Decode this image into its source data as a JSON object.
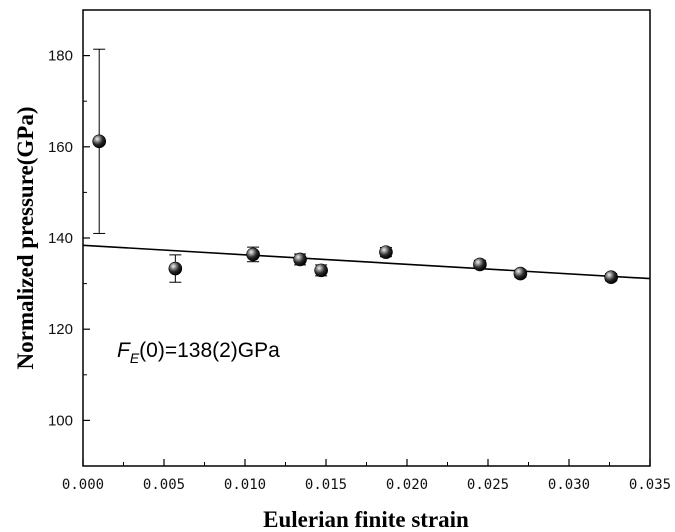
{
  "chart_data": {
    "type": "scatter",
    "title": "",
    "xlabel": "Eulerian finite strain",
    "ylabel": "Normalized pressure(GPa)",
    "xlim": [
      0.0,
      0.035
    ],
    "ylim": [
      90,
      190
    ],
    "x_ticks": [
      0.0,
      0.005,
      0.01,
      0.015,
      0.02,
      0.025,
      0.03,
      0.035
    ],
    "x_tick_labels": [
      "0.000",
      "0.005",
      "0.010",
      "0.015",
      "0.020",
      "0.025",
      "0.030",
      "0.035"
    ],
    "y_ticks": [
      100,
      120,
      140,
      160,
      180
    ],
    "y_tick_labels": [
      "100",
      "120",
      "140",
      "160",
      "180"
    ],
    "grid": false,
    "points": [
      {
        "x": 0.001,
        "y": 161.2,
        "err": 20.2
      },
      {
        "x": 0.0057,
        "y": 133.3,
        "err": 3.0
      },
      {
        "x": 0.0105,
        "y": 136.4,
        "err": 1.6
      },
      {
        "x": 0.0134,
        "y": 135.3,
        "err": 1.2
      },
      {
        "x": 0.0147,
        "y": 132.9,
        "err": 1.2
      },
      {
        "x": 0.0187,
        "y": 136.9,
        "err": 1.0
      },
      {
        "x": 0.0245,
        "y": 134.2,
        "err": 0.9
      },
      {
        "x": 0.027,
        "y": 132.2,
        "err": 0.8
      },
      {
        "x": 0.0326,
        "y": 131.4,
        "err": 0.8
      }
    ],
    "fit_line": {
      "x": [
        0.0,
        0.035
      ],
      "y": [
        138.4,
        131.1
      ]
    },
    "annotation": {
      "prefix": "F",
      "subscript": "E",
      "suffix": "(0)=138(2)GPa"
    }
  }
}
